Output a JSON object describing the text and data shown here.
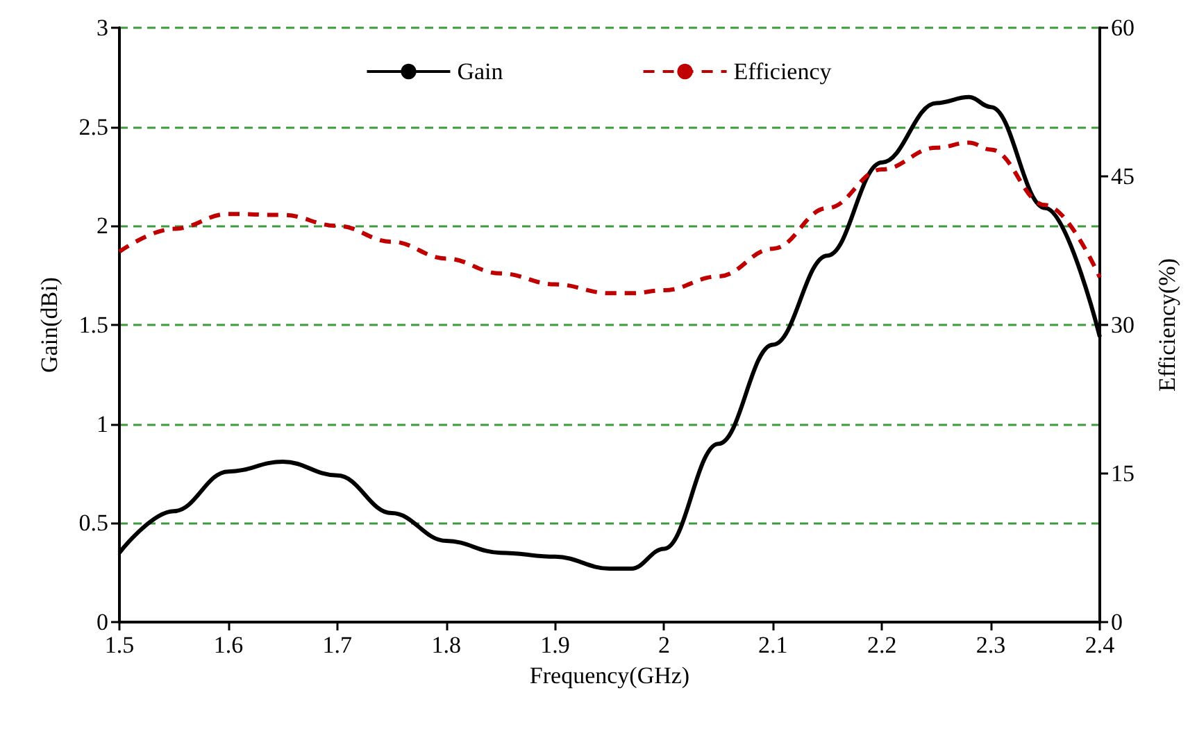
{
  "chart_data": {
    "type": "line",
    "xlabel": "Frequency(GHz)",
    "ylabel": "Gain(dBi)",
    "y2label": "Efficiency(%)",
    "xlim": [
      1.5,
      2.4
    ],
    "xticks": [
      1.5,
      1.6,
      1.7,
      1.8,
      1.9,
      2,
      2.1,
      2.2,
      2.3,
      2.4
    ],
    "ylim": [
      0,
      3
    ],
    "yticks": [
      0,
      0.5,
      1,
      1.5,
      2,
      2.5,
      3
    ],
    "y2lim": [
      0,
      60
    ],
    "y2ticks": [
      0,
      15,
      30,
      45,
      60
    ],
    "grid": "y",
    "legend": "top",
    "marker": "none",
    "series": [
      {
        "name": "Gain",
        "color": "#000000",
        "line_style": "solid",
        "x": [
          1.5,
          1.55,
          1.6,
          1.65,
          1.7,
          1.75,
          1.8,
          1.85,
          1.9,
          1.95,
          1.97,
          2,
          2.05,
          2.1,
          2.15,
          2.2,
          2.25,
          2.28,
          2.3,
          2.35,
          2.4
        ],
        "values": [
          0.35,
          0.56,
          0.76,
          0.81,
          0.74,
          0.55,
          0.41,
          0.35,
          0.33,
          0.27,
          0.27,
          0.37,
          0.9,
          1.4,
          1.85,
          2.32,
          2.62,
          2.65,
          2.6,
          2.09,
          1.44
        ]
      },
      {
        "name": "Efficiency",
        "color": "#c00000",
        "line_style": "dashed",
        "axis": "y2",
        "x": [
          1.5,
          1.55,
          1.6,
          1.65,
          1.7,
          1.75,
          1.8,
          1.85,
          1.9,
          1.95,
          1.97,
          2,
          2.05,
          2.1,
          2.15,
          2.2,
          2.25,
          2.28,
          2.3,
          2.35,
          2.4
        ],
        "values": [
          37.4,
          39.7,
          41.2,
          41.1,
          40,
          38.4,
          36.7,
          35.2,
          34.1,
          33.2,
          33.2,
          33.5,
          34.9,
          37.7,
          41.8,
          45.7,
          47.9,
          48.4,
          47.7,
          42.1,
          34.8
        ]
      }
    ]
  }
}
